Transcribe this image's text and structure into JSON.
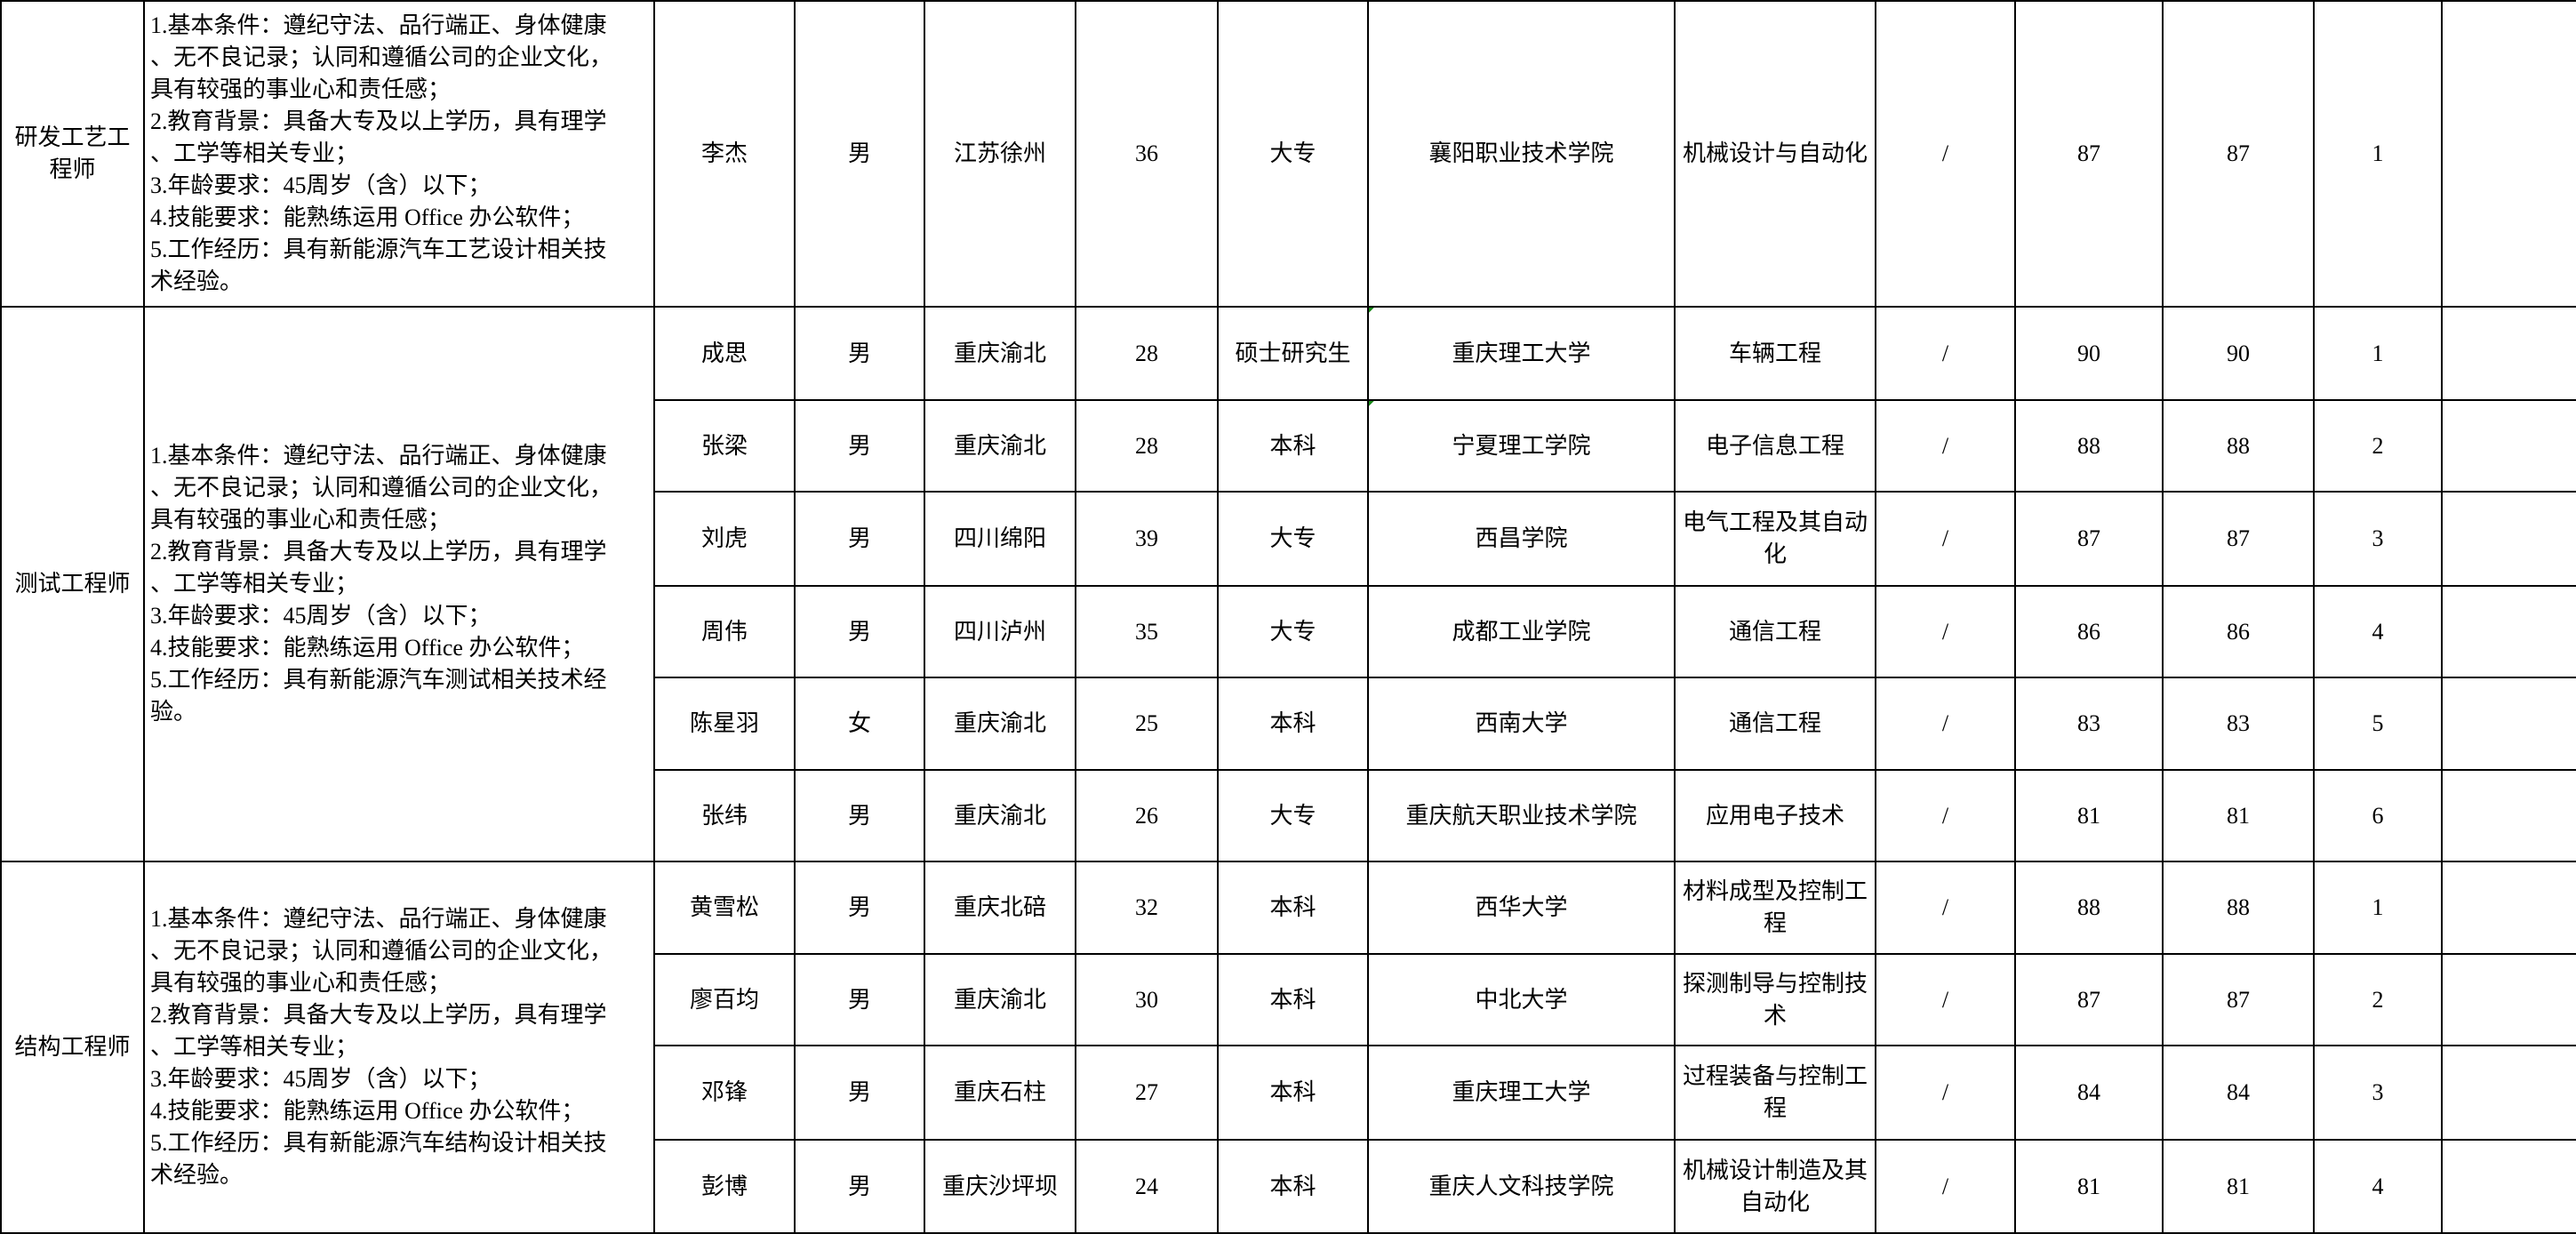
{
  "groups": [
    {
      "position": "研发工艺工程师",
      "requirements": "1.基本条件：遵纪守法、品行端正、身体健康\n、无不良记录；认同和遵循公司的企业文化，\n具有较强的事业心和责任感；\n2.教育背景：具备大专及以上学历，具有理学\n、工学等相关专业；\n3.年龄要求：45周岁（含）以下；\n4.技能要求：能熟练运用 Office 办公软件；\n5.工作经历：具有新能源汽车工艺设计相关技\n术经验。",
      "rows": [
        {
          "name": "李杰",
          "gender": "男",
          "origin": "江苏徐州",
          "age": "36",
          "education": "大专",
          "school": "襄阳职业技术学院",
          "major": "机械设计与自动化",
          "other": "/",
          "score1": "87",
          "score2": "87",
          "rank": "1",
          "note": ""
        }
      ]
    },
    {
      "position": "测试工程师",
      "requirements": "1.基本条件：遵纪守法、品行端正、身体健康\n、无不良记录；认同和遵循公司的企业文化，\n具有较强的事业心和责任感；\n2.教育背景：具备大专及以上学历，具有理学\n、工学等相关专业；\n3.年龄要求：45周岁（含）以下；\n4.技能要求：能熟练运用 Office 办公软件；\n5.工作经历：具有新能源汽车测试相关技术经\n验。",
      "rows": [
        {
          "name": "成思",
          "gender": "男",
          "origin": "重庆渝北",
          "age": "28",
          "education": "硕士研究生",
          "school": "重庆理工大学",
          "major": "车辆工程",
          "other": "/",
          "score1": "90",
          "score2": "90",
          "rank": "1",
          "note": ""
        },
        {
          "name": "张梁",
          "gender": "男",
          "origin": "重庆渝北",
          "age": "28",
          "education": "本科",
          "school": "宁夏理工学院",
          "major": "电子信息工程",
          "other": "/",
          "score1": "88",
          "score2": "88",
          "rank": "2",
          "note": ""
        },
        {
          "name": "刘虎",
          "gender": "男",
          "origin": "四川绵阳",
          "age": "39",
          "education": "大专",
          "school": "西昌学院",
          "major": "电气工程及其自动化",
          "other": "/",
          "score1": "87",
          "score2": "87",
          "rank": "3",
          "note": ""
        },
        {
          "name": "周伟",
          "gender": "男",
          "origin": "四川泸州",
          "age": "35",
          "education": "大专",
          "school": "成都工业学院",
          "major": "通信工程",
          "other": "/",
          "score1": "86",
          "score2": "86",
          "rank": "4",
          "note": ""
        },
        {
          "name": "陈星羽",
          "gender": "女",
          "origin": "重庆渝北",
          "age": "25",
          "education": "本科",
          "school": "西南大学",
          "major": "通信工程",
          "other": "/",
          "score1": "83",
          "score2": "83",
          "rank": "5",
          "note": ""
        },
        {
          "name": "张纬",
          "gender": "男",
          "origin": "重庆渝北",
          "age": "26",
          "education": "大专",
          "school": "重庆航天职业技术学院",
          "major": "应用电子技术",
          "other": "/",
          "score1": "81",
          "score2": "81",
          "rank": "6",
          "note": ""
        }
      ]
    },
    {
      "position": "结构工程师",
      "requirements": "1.基本条件：遵纪守法、品行端正、身体健康\n、无不良记录；认同和遵循公司的企业文化，\n具有较强的事业心和责任感；\n2.教育背景：具备大专及以上学历，具有理学\n、工学等相关专业；\n3.年龄要求：45周岁（含）以下；\n4.技能要求：能熟练运用 Office 办公软件；\n5.工作经历：具有新能源汽车结构设计相关技\n术经验。",
      "rows": [
        {
          "name": "黄雪松",
          "gender": "男",
          "origin": "重庆北碚",
          "age": "32",
          "education": "本科",
          "school": "西华大学",
          "major": "材料成型及控制工程",
          "other": "/",
          "score1": "88",
          "score2": "88",
          "rank": "1",
          "note": ""
        },
        {
          "name": "廖百均",
          "gender": "男",
          "origin": "重庆渝北",
          "age": "30",
          "education": "本科",
          "school": "中北大学",
          "major": "探测制导与控制技术",
          "other": "/",
          "score1": "87",
          "score2": "87",
          "rank": "2",
          "note": ""
        },
        {
          "name": "邓锋",
          "gender": "男",
          "origin": "重庆石柱",
          "age": "27",
          "education": "本科",
          "school": "重庆理工大学",
          "major": "过程装备与控制工程",
          "other": "/",
          "score1": "84",
          "score2": "84",
          "rank": "3",
          "note": ""
        },
        {
          "name": "彭博",
          "gender": "男",
          "origin": "重庆沙坪坝",
          "age": "24",
          "education": "本科",
          "school": "重庆人文科技学院",
          "major": "机械设计制造及其自动化",
          "other": "/",
          "score1": "81",
          "score2": "81",
          "rank": "4",
          "note": ""
        }
      ]
    }
  ]
}
